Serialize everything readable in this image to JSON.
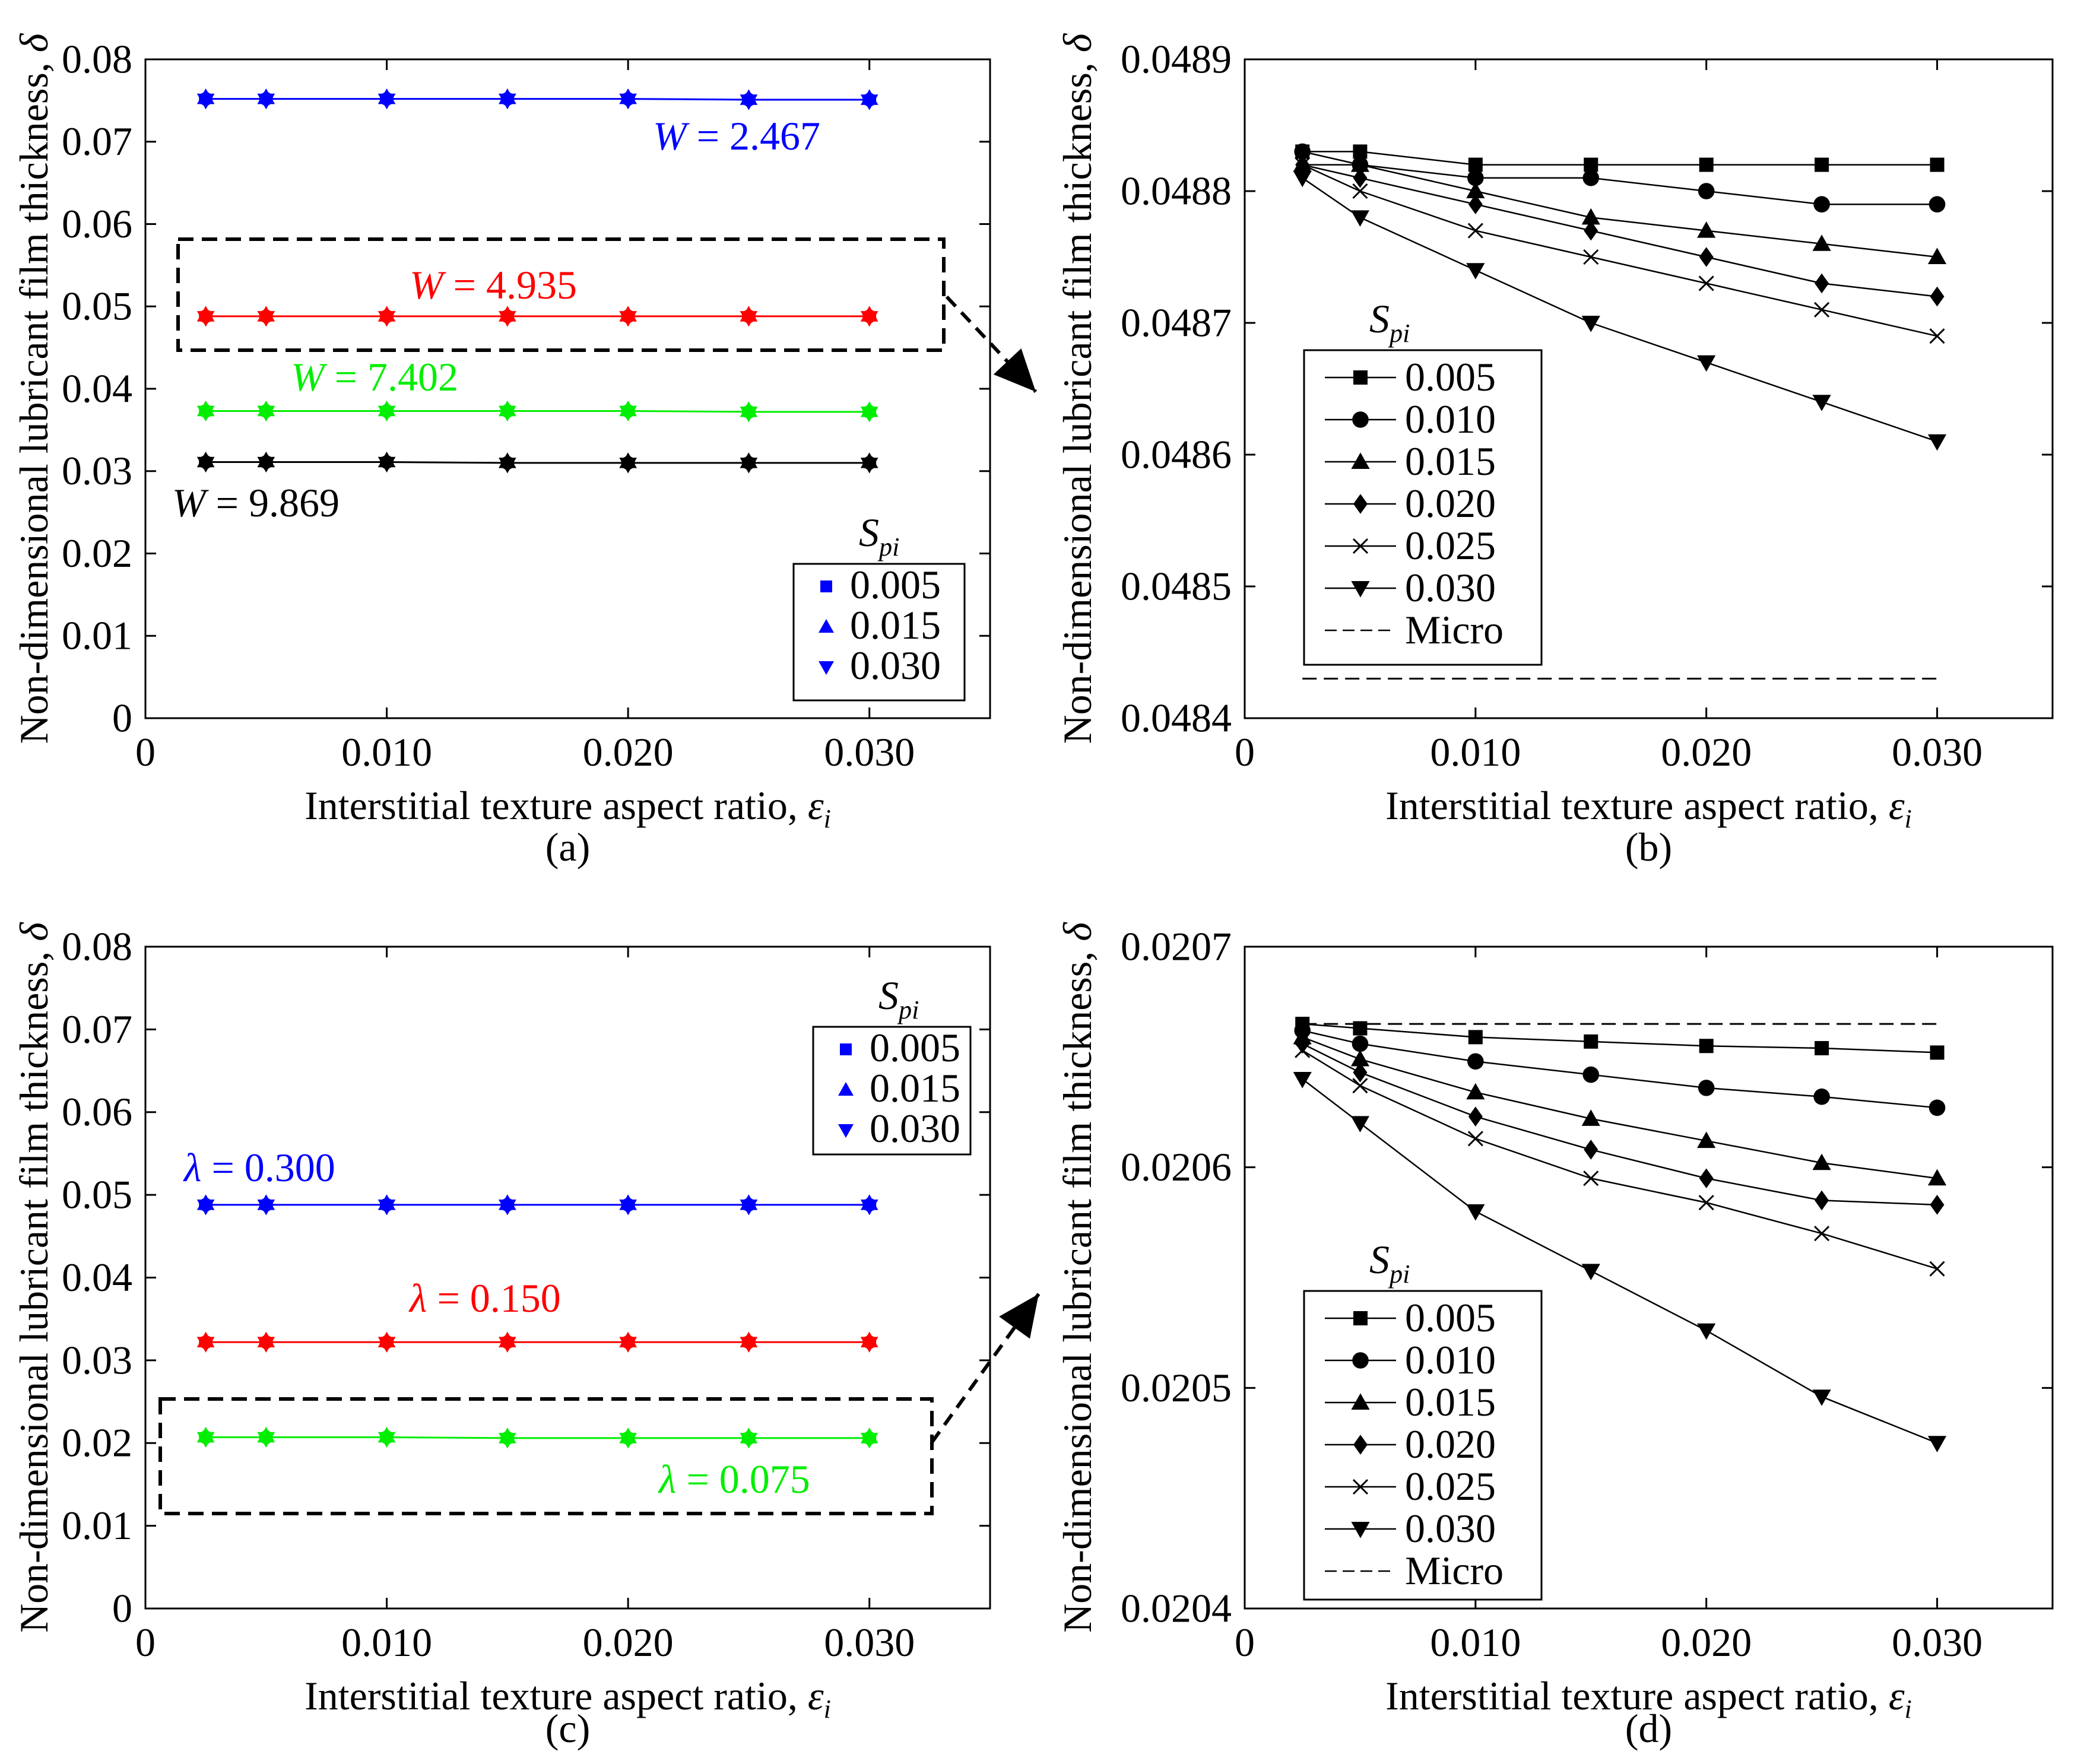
{
  "chart_data": [
    {
      "panel": "a",
      "caption": "(a)",
      "type": "line",
      "xlabel": "Interstitial texture aspect ratio, ",
      "xlabel_sym": "ε",
      "xlabel_sub": "i",
      "ylabel": "Non-dimensional lubricant film thickness, ",
      "ylabel_sym": "δ",
      "xlim": [
        0,
        0.035
      ],
      "ylim": [
        0,
        0.08
      ],
      "x_ticks": [
        "0",
        "0.010",
        "0.020",
        "0.030"
      ],
      "x_tick_values": [
        0,
        0.01,
        0.02,
        0.03
      ],
      "y_ticks": [
        "0",
        "0.01",
        "0.02",
        "0.03",
        "0.04",
        "0.05",
        "0.06",
        "0.07",
        "0.08"
      ],
      "y_tick_values": [
        0,
        0.01,
        0.02,
        0.03,
        0.04,
        0.05,
        0.06,
        0.07,
        0.08
      ],
      "x": [
        0.0025,
        0.005,
        0.01,
        0.015,
        0.02,
        0.025,
        0.03
      ],
      "series": [
        {
          "name": "W = 2.467",
          "label_var": "W",
          "label_val": " = 2.467",
          "color": "#0000ff",
          "values": [
            0.0752,
            0.0752,
            0.0752,
            0.0752,
            0.0752,
            0.0751,
            0.0751
          ]
        },
        {
          "name": "W = 4.935",
          "label_var": "W",
          "label_val": " = 4.935",
          "color": "#ff0000",
          "values": [
            0.0488,
            0.0488,
            0.0488,
            0.0488,
            0.0488,
            0.0488,
            0.0488
          ]
        },
        {
          "name": "W = 7.402",
          "label_var": "W",
          "label_val": " = 7.402",
          "color": "#00ee00",
          "values": [
            0.0373,
            0.0373,
            0.0373,
            0.0373,
            0.0373,
            0.0372,
            0.0372
          ]
        },
        {
          "name": "W = 9.869",
          "label_var": "W",
          "label_val": " = 9.869",
          "color": "#000000",
          "values": [
            0.0311,
            0.0311,
            0.0311,
            0.031,
            0.031,
            0.031,
            0.031
          ]
        }
      ],
      "legend_title": "S",
      "legend_title_sub": "pi",
      "legend_entries": [
        "0.005",
        "0.015",
        "0.030"
      ]
    },
    {
      "panel": "b",
      "caption": "(b)",
      "type": "line",
      "xlabel": "Interstitial texture aspect ratio, ",
      "xlabel_sym": "ε",
      "xlabel_sub": "i",
      "ylabel": "Non-dimensional lubricant film thickness, ",
      "ylabel_sym": "δ",
      "xlim": [
        0,
        0.035
      ],
      "ylim": [
        0.0484,
        0.0489
      ],
      "x_ticks": [
        "0",
        "0.010",
        "0.020",
        "0.030"
      ],
      "x_tick_values": [
        0,
        0.01,
        0.02,
        0.03
      ],
      "y_ticks": [
        "0.0484",
        "0.0485",
        "0.0486",
        "0.0487",
        "0.0488",
        "0.0489"
      ],
      "y_tick_values": [
        0.0484,
        0.0485,
        0.0486,
        0.0487,
        0.0488,
        0.0489
      ],
      "x": [
        0.0025,
        0.005,
        0.01,
        0.015,
        0.02,
        0.025,
        0.03
      ],
      "series": [
        {
          "name": "0.005",
          "marker": "square",
          "values": [
            0.04883,
            0.04883,
            0.04882,
            0.04882,
            0.04882,
            0.04882,
            0.04882
          ]
        },
        {
          "name": "0.010",
          "marker": "circle",
          "values": [
            0.04883,
            0.04882,
            0.04881,
            0.04881,
            0.0488,
            0.04879,
            0.04879
          ]
        },
        {
          "name": "0.015",
          "marker": "triangle-up",
          "values": [
            0.04882,
            0.04882,
            0.0488,
            0.04878,
            0.04877,
            0.04876,
            0.04875
          ]
        },
        {
          "name": "0.020",
          "marker": "diamond",
          "values": [
            0.04882,
            0.04881,
            0.04879,
            0.04877,
            0.04875,
            0.04873,
            0.04872
          ]
        },
        {
          "name": "0.025",
          "marker": "x",
          "values": [
            0.04882,
            0.0488,
            0.04877,
            0.04875,
            0.04873,
            0.04871,
            0.04869
          ]
        },
        {
          "name": "0.030",
          "marker": "triangle-down",
          "values": [
            0.04881,
            0.04878,
            0.04874,
            0.0487,
            0.04867,
            0.04864,
            0.04861
          ]
        }
      ],
      "micro": {
        "name": "Micro",
        "value": 0.04843
      },
      "legend_title": "S",
      "legend_title_sub": "pi",
      "legend_entries": [
        "0.005",
        "0.010",
        "0.015",
        "0.020",
        "0.025",
        "0.030",
        "Micro"
      ]
    },
    {
      "panel": "c",
      "caption": "(c)",
      "type": "line",
      "xlabel": "Interstitial texture aspect ratio, ",
      "xlabel_sym": "ε",
      "xlabel_sub": "i",
      "ylabel": "Non-dimensional lubricant film thickness, ",
      "ylabel_sym": "δ",
      "xlim": [
        0,
        0.035
      ],
      "ylim": [
        0,
        0.08
      ],
      "x_ticks": [
        "0",
        "0.010",
        "0.020",
        "0.030"
      ],
      "x_tick_values": [
        0,
        0.01,
        0.02,
        0.03
      ],
      "y_ticks": [
        "0",
        "0.01",
        "0.02",
        "0.03",
        "0.04",
        "0.05",
        "0.06",
        "0.07",
        "0.08"
      ],
      "y_tick_values": [
        0,
        0.01,
        0.02,
        0.03,
        0.04,
        0.05,
        0.06,
        0.07,
        0.08
      ],
      "x": [
        0.0025,
        0.005,
        0.01,
        0.015,
        0.02,
        0.025,
        0.03
      ],
      "series": [
        {
          "name": "λ = 0.300",
          "label_var": "λ",
          "label_val": " = 0.300",
          "color": "#0000ff",
          "values": [
            0.0488,
            0.0488,
            0.0488,
            0.0488,
            0.0488,
            0.0488,
            0.0488
          ]
        },
        {
          "name": "λ = 0.150",
          "label_var": "λ",
          "label_val": " = 0.150",
          "color": "#ff0000",
          "values": [
            0.0322,
            0.0322,
            0.0322,
            0.0322,
            0.0322,
            0.0322,
            0.0322
          ]
        },
        {
          "name": "λ = 0.075",
          "label_var": "λ",
          "label_val": " = 0.075",
          "color": "#00ee00",
          "values": [
            0.0207,
            0.0207,
            0.0207,
            0.0206,
            0.0206,
            0.0206,
            0.0206
          ]
        }
      ],
      "legend_title": "S",
      "legend_title_sub": "pi",
      "legend_entries": [
        "0.005",
        "0.015",
        "0.030"
      ]
    },
    {
      "panel": "d",
      "caption": "(d)",
      "type": "line",
      "xlabel": "Interstitial texture aspect ratio, ",
      "xlabel_sym": "ε",
      "xlabel_sub": "i",
      "ylabel": "Non-dimensional lubricant film thickness, ",
      "ylabel_sym": "δ",
      "xlim": [
        0,
        0.035
      ],
      "ylim": [
        0.0204,
        0.0207
      ],
      "x_ticks": [
        "0",
        "0.010",
        "0.020",
        "0.030"
      ],
      "x_tick_values": [
        0,
        0.01,
        0.02,
        0.03
      ],
      "y_ticks": [
        "0.0204",
        "0.0205",
        "0.0206",
        "0.0207"
      ],
      "y_tick_values": [
        0.0204,
        0.0205,
        0.0206,
        0.0207
      ],
      "x": [
        0.0025,
        0.005,
        0.01,
        0.015,
        0.02,
        0.025,
        0.03
      ],
      "series": [
        {
          "name": "0.005",
          "marker": "square",
          "values": [
            0.020665,
            0.020663,
            0.020659,
            0.020657,
            0.020655,
            0.020654,
            0.020652
          ]
        },
        {
          "name": "0.010",
          "marker": "circle",
          "values": [
            0.020662,
            0.020656,
            0.020648,
            0.020642,
            0.020636,
            0.020632,
            0.020627
          ]
        },
        {
          "name": "0.015",
          "marker": "triangle-up",
          "values": [
            0.020659,
            0.020649,
            0.020634,
            0.020622,
            0.020612,
            0.020602,
            0.020595
          ]
        },
        {
          "name": "0.020",
          "marker": "diamond",
          "values": [
            0.020656,
            0.020643,
            0.020623,
            0.020608,
            0.020595,
            0.020585,
            0.020583
          ]
        },
        {
          "name": "0.025",
          "marker": "x",
          "values": [
            0.020653,
            0.020637,
            0.020613,
            0.020595,
            0.020584,
            0.02057,
            0.020554
          ]
        },
        {
          "name": "0.030",
          "marker": "triangle-down",
          "values": [
            0.02064,
            0.02062,
            0.02058,
            0.020553,
            0.020526,
            0.020496,
            0.020475
          ]
        }
      ],
      "micro": {
        "name": "Micro",
        "value": 0.020665
      },
      "legend_title": "S",
      "legend_title_sub": "pi",
      "legend_entries": [
        "0.005",
        "0.010",
        "0.015",
        "0.020",
        "0.025",
        "0.030",
        "Micro"
      ]
    }
  ]
}
